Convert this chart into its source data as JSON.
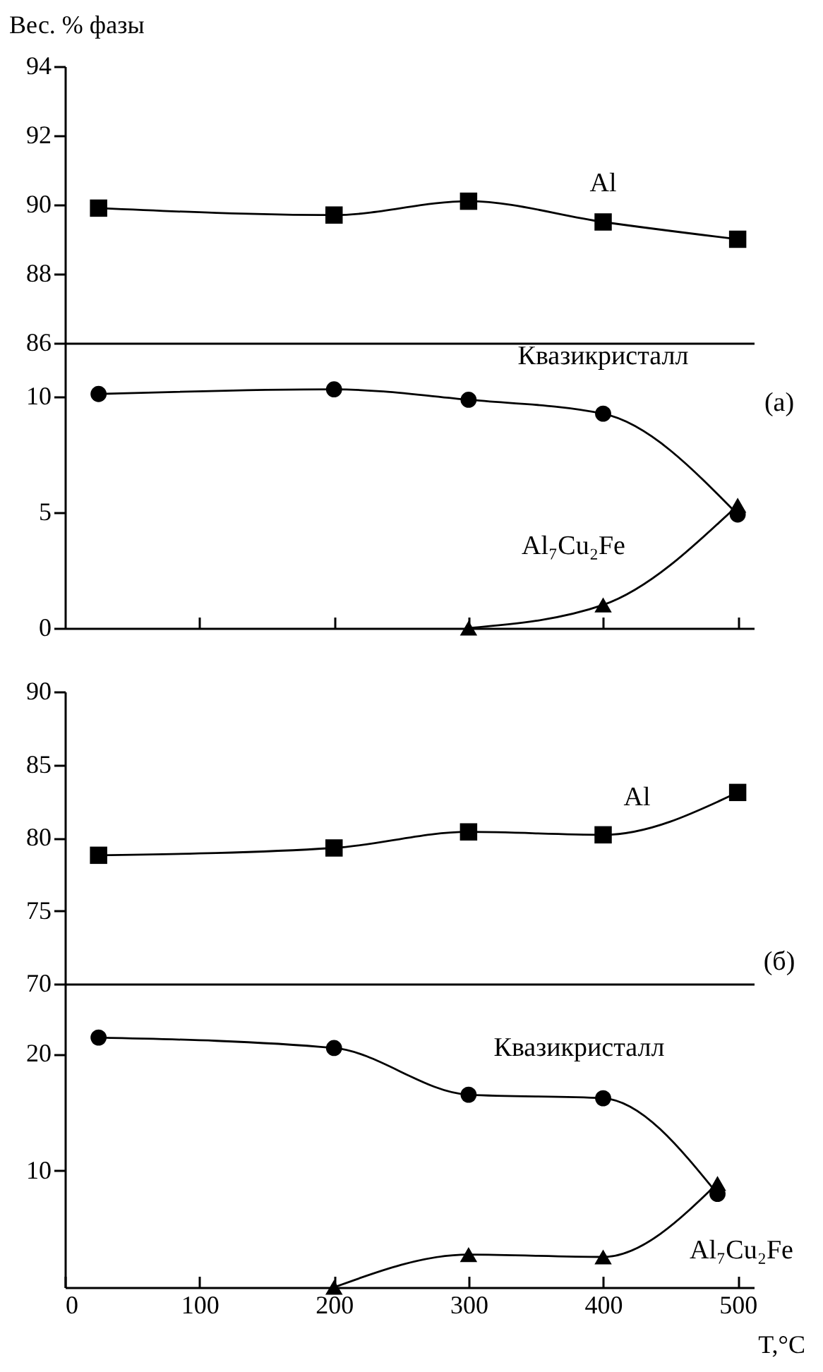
{
  "chart_data": [
    {
      "type": "line",
      "ylabel": "Вес. % фазы",
      "xlim": [
        0,
        512
      ],
      "ylim": [
        86,
        94
      ],
      "yticks": [
        86,
        88,
        90,
        92,
        94
      ],
      "tick_labels": "y",
      "grid": false,
      "series": [
        {
          "name": "Al",
          "color": "#000000",
          "marker": "square",
          "x": [
            25,
            200,
            300,
            400,
            500
          ],
          "values": [
            89.9,
            89.7,
            90.1,
            89.5,
            89.0
          ]
        }
      ]
    },
    {
      "type": "line",
      "annotations": [
        "(a)"
      ],
      "xlim": [
        0,
        512
      ],
      "xticks": [
        {
          "value": 100,
          "label": null
        },
        {
          "value": 200,
          "label": null
        },
        {
          "value": 300,
          "label": null
        },
        {
          "value": 400,
          "label": null
        },
        {
          "value": 500,
          "label": null
        }
      ],
      "ylim": [
        0,
        12.3
      ],
      "yticks": [
        0,
        5,
        10
      ],
      "tick_labels": "y",
      "grid": false,
      "series": [
        {
          "name": "Квазикристалл",
          "color": "#000000",
          "marker": "circle",
          "x": [
            25,
            200,
            300,
            400,
            500
          ],
          "values": [
            10.1,
            10.3,
            9.85,
            9.25,
            4.9
          ]
        },
        {
          "name": "Al₇Cu₂Fe",
          "color": "#000000",
          "marker": "triangle",
          "x": [
            300,
            400,
            500
          ],
          "values": [
            0,
            1.0,
            5.3
          ]
        }
      ]
    },
    {
      "type": "line",
      "annotations": [
        "(б)"
      ],
      "xlim": [
        0,
        512
      ],
      "ylim": [
        70,
        90
      ],
      "yticks": [
        70,
        75,
        80,
        85,
        90
      ],
      "tick_labels": "y",
      "grid": false,
      "series": [
        {
          "name": "Al",
          "color": "#000000",
          "marker": "square",
          "x": [
            25,
            200,
            300,
            400,
            500
          ],
          "values": [
            78.8,
            79.3,
            80.4,
            80.2,
            83.1
          ]
        }
      ]
    },
    {
      "type": "line",
      "xlabel": "T,°C",
      "xlim": [
        0,
        512
      ],
      "xticks": [
        0,
        100,
        200,
        300,
        400,
        500
      ],
      "ylim": [
        0,
        26
      ],
      "yticks": [
        10,
        20
      ],
      "grid": false,
      "series": [
        {
          "name": "Квазикристалл",
          "color": "#000000",
          "marker": "circle",
          "x": [
            25,
            200,
            300,
            400,
            485
          ],
          "values": [
            21.4,
            20.5,
            16.5,
            16.2,
            8.0
          ]
        },
        {
          "name": "Al₇Cu₂Fe",
          "color": "#000000",
          "marker": "triangle",
          "x": [
            200,
            300,
            400,
            485
          ],
          "values": [
            0,
            2.8,
            2.6,
            8.9
          ]
        }
      ]
    }
  ]
}
